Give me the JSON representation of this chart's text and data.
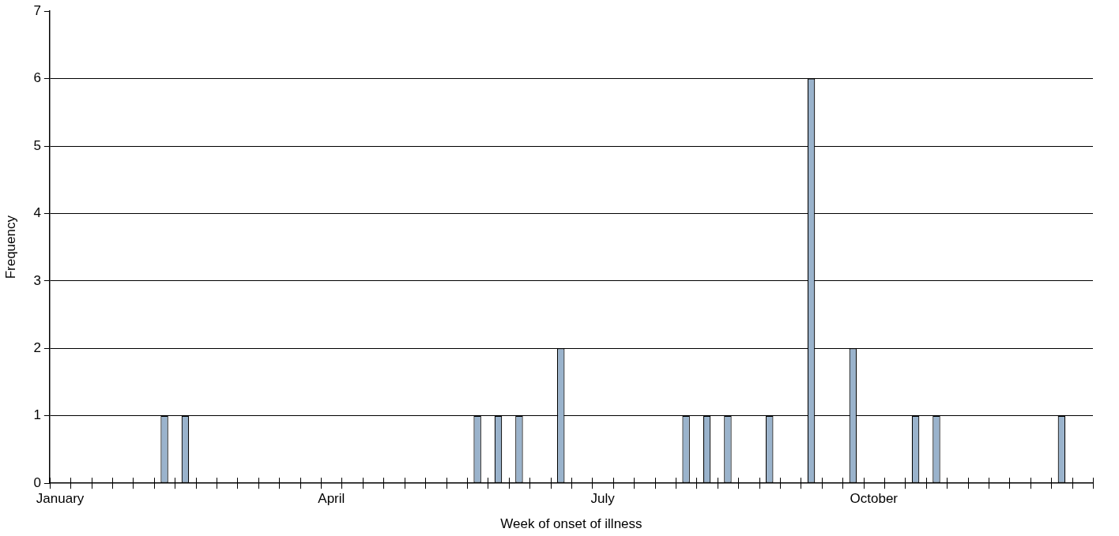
{
  "chart_data": {
    "type": "bar",
    "xlabel": "Week of onset of illness",
    "ylabel": "Frequency",
    "categories": [
      "January",
      null,
      null,
      null,
      null,
      null,
      null,
      null,
      null,
      null,
      null,
      null,
      null,
      "April",
      null,
      null,
      null,
      null,
      null,
      null,
      null,
      null,
      null,
      null,
      null,
      null,
      "July",
      null,
      null,
      null,
      null,
      null,
      null,
      null,
      null,
      null,
      null,
      null,
      null,
      "October",
      null,
      null,
      null,
      null,
      null,
      null,
      null,
      null,
      null,
      null
    ],
    "values": [
      0,
      0,
      0,
      0,
      0,
      1,
      1,
      0,
      0,
      0,
      0,
      0,
      0,
      0,
      0,
      0,
      0,
      0,
      0,
      0,
      1,
      1,
      1,
      0,
      2,
      0,
      0,
      0,
      0,
      0,
      1,
      1,
      1,
      0,
      1,
      0,
      6,
      0,
      2,
      0,
      0,
      1,
      1,
      0,
      0,
      0,
      0,
      0,
      1,
      0
    ],
    "color": "#9ab3cc",
    "ylim": [
      0,
      7
    ],
    "yticks": [
      0,
      1,
      2,
      3,
      4,
      5,
      6,
      7
    ],
    "grid": "y",
    "legend": false
  }
}
